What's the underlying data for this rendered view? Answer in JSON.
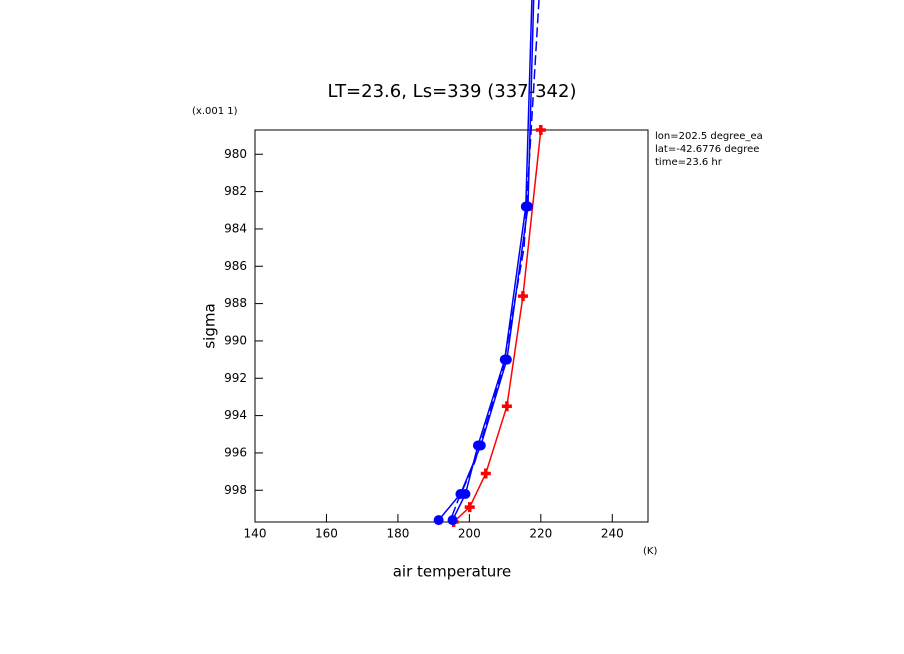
{
  "chart_data": {
    "type": "line",
    "title": "LT=23.6, Ls=339 (337-342)",
    "x_label": "air temperature",
    "y_label": "sigma",
    "y_unit": "(x.001 1)",
    "x_unit": "(K)",
    "annotations": [
      "lon=202.5 degree_ea",
      "lat=-42.6776 degree",
      "time=23.6 hr"
    ],
    "xlim": [
      140,
      250
    ],
    "ylim": [
      999.7,
      978.7
    ],
    "xticks": [
      140,
      160,
      180,
      200,
      220,
      240
    ],
    "yticks": [
      980,
      982,
      984,
      986,
      988,
      990,
      992,
      994,
      996,
      998
    ],
    "series": [
      {
        "color": "#ff0000",
        "marker": "plus",
        "dash": false,
        "x": [
          220,
          215,
          210.5,
          204.6,
          200.1,
          195.6
        ],
        "values": [
          978.7,
          987.6,
          993.5,
          997.1,
          998.9,
          999.7
        ]
      },
      {
        "color": "#0000ff",
        "marker": "circle",
        "dash": false,
        "x": [
          218,
          216.4,
          210.5,
          203.2,
          197.5,
          191.4
        ],
        "values": [
          971.7,
          982.8,
          991.0,
          995.6,
          998.2,
          999.6
        ]
      },
      {
        "color": "#0000ff",
        "marker": "circle",
        "dash": false,
        "x": [
          217.5,
          215.8,
          209.9,
          202.4,
          198.9,
          195.3
        ],
        "values": [
          971.7,
          982.8,
          991.0,
          995.6,
          998.2,
          999.6
        ]
      },
      {
        "color": "#0000ff",
        "marker": "none",
        "dash": true,
        "x": [
          219.5,
          215.3,
          209.4,
          201.5,
          196.7,
          194.5
        ],
        "values": [
          971.7,
          985.0,
          991.5,
          996.5,
          998.6,
          999.7
        ]
      }
    ]
  }
}
